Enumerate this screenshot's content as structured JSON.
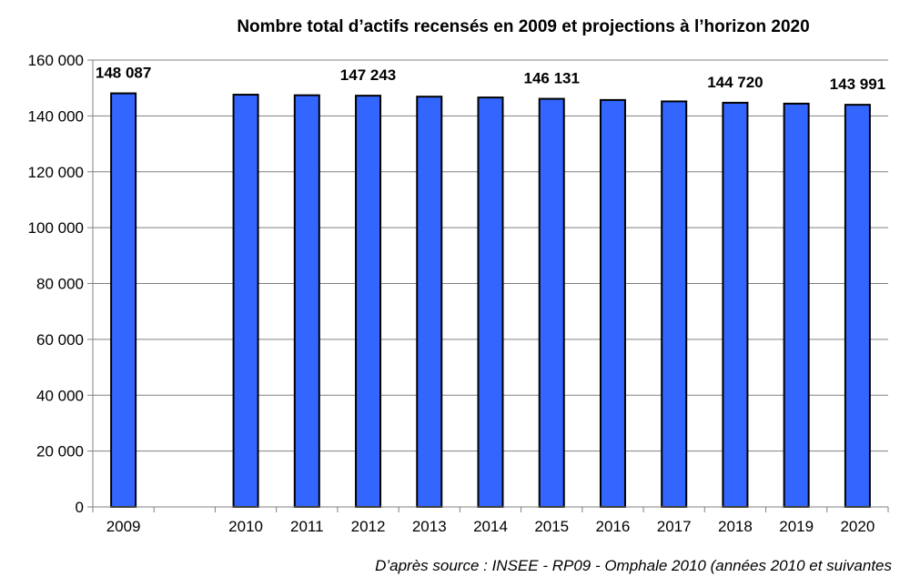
{
  "chart_data": {
    "type": "bar",
    "title": "Nombre total d’actifs recensés en 2009 et projections à l’horizon 2020",
    "xlabel": "",
    "ylabel": "",
    "categories": [
      "2009",
      "",
      "2010",
      "2011",
      "2012",
      "2013",
      "2014",
      "2015",
      "2016",
      "2017",
      "2018",
      "2019",
      "2020"
    ],
    "values": [
      148087,
      null,
      147600,
      147400,
      147243,
      146900,
      146600,
      146131,
      145700,
      145200,
      144720,
      144400,
      143991
    ],
    "data_labels": [
      "148 087",
      "",
      "",
      "",
      "147 243",
      "",
      "",
      "146 131",
      "",
      "",
      "144 720",
      "",
      "143 991"
    ],
    "ylim": [
      0,
      160000
    ],
    "yticks": [
      0,
      20000,
      40000,
      60000,
      80000,
      100000,
      120000,
      140000,
      160000
    ],
    "ytick_labels": [
      "0",
      "20 000",
      "40 000",
      "60 000",
      "80 000",
      "100 000",
      "120 000",
      "140 000",
      "160 000"
    ],
    "grid": true,
    "legend": "none",
    "colors": {
      "bar": "#3366ff",
      "bar_outline": "#000000",
      "grid": "#808080",
      "axis": "#808080"
    }
  },
  "source_note": "D’après source : INSEE - RP09 - Omphale 2010 (années 2010 et suivantes"
}
